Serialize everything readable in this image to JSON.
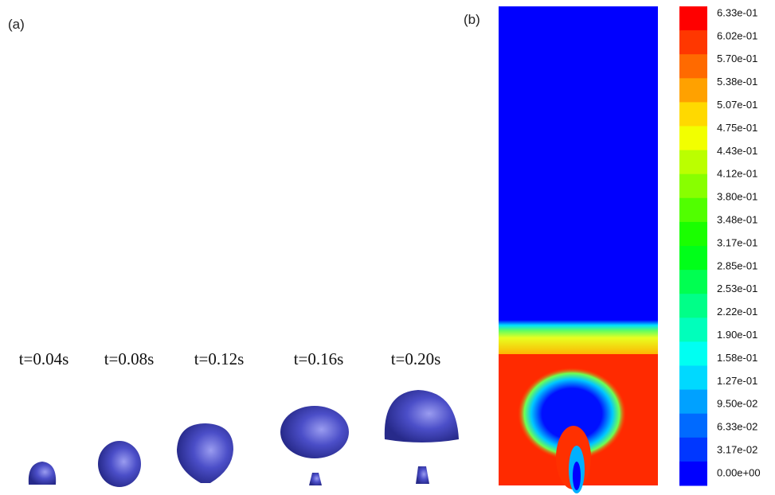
{
  "panel_a": {
    "label": "(a)",
    "times": [
      "t=0.04s",
      "t=0.08s",
      "t=0.12s",
      "t=0.16s",
      "t=0.20s"
    ]
  },
  "panel_b": {
    "label": "(b)",
    "colorbar": {
      "labels": [
        "6.33e-01",
        "6.02e-01",
        "5.70e-01",
        "5.38e-01",
        "5.07e-01",
        "4.75e-01",
        "4.43e-01",
        "4.12e-01",
        "3.80e-01",
        "3.48e-01",
        "3.17e-01",
        "2.85e-01",
        "2.53e-01",
        "2.22e-01",
        "1.90e-01",
        "1.58e-01",
        "1.27e-01",
        "9.50e-02",
        "6.33e-02",
        "3.17e-02",
        "0.00e+00"
      ]
    }
  }
}
